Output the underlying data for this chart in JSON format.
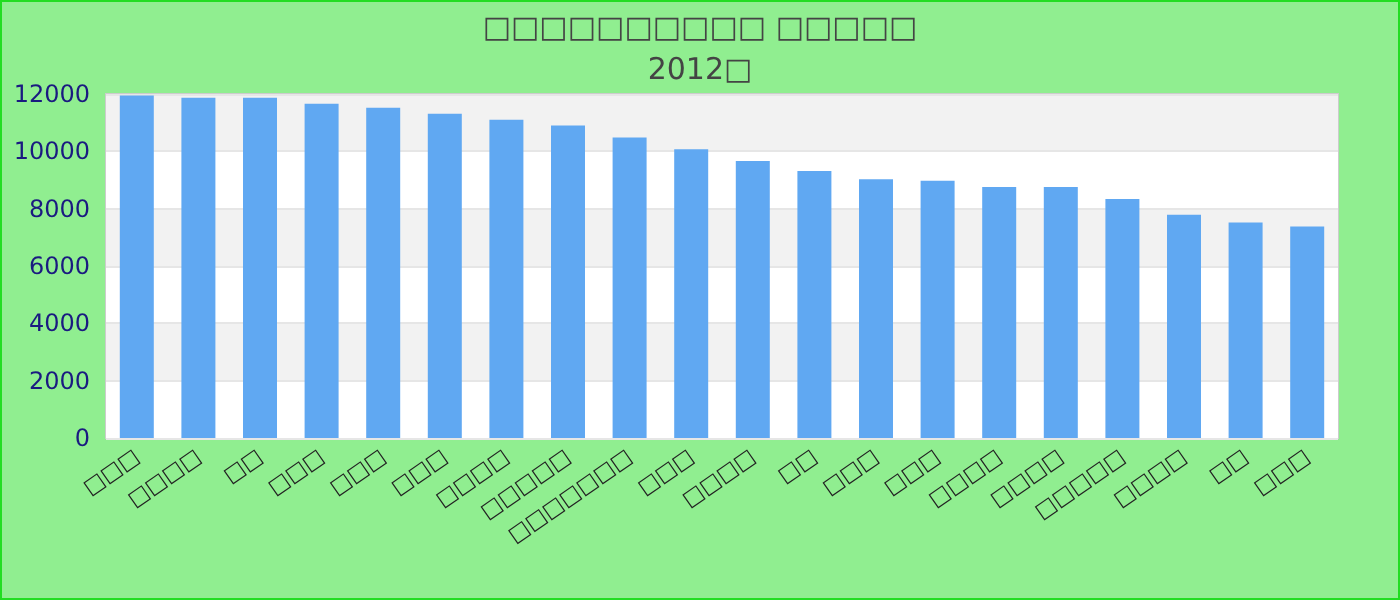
{
  "chart_data": {
    "type": "bar",
    "title": "□□□□□□□□□□ □□□□□",
    "subtitle": "2012□",
    "categories": [
      "□□□",
      "□□□□",
      "□□",
      "□□□",
      "□□□",
      "□□□",
      "□□□□",
      "□□□□□",
      "□□□□□□□",
      "□□□",
      "□□□□",
      "□□",
      "□□□",
      "□□□",
      "□□□□",
      "□□□□",
      "□□□□□",
      "□□□□",
      "□□",
      "□□□"
    ],
    "values": [
      11950,
      11870,
      11870,
      11660,
      11520,
      11310,
      11100,
      10900,
      10480,
      10070,
      9660,
      9310,
      9030,
      8970,
      8760,
      8760,
      8340,
      7790,
      7520,
      7380
    ],
    "color": "#60a8f2",
    "ylim": [
      0,
      12000
    ],
    "yticks": [
      0,
      2000,
      4000,
      6000,
      8000,
      10000,
      12000
    ],
    "grid": true
  }
}
